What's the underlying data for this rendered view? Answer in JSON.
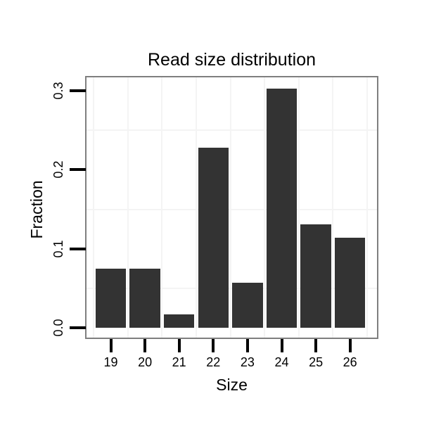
{
  "chart_data": {
    "type": "bar",
    "title": "Read size distribution",
    "xlabel": "Size",
    "ylabel": "Fraction",
    "categories": [
      "19",
      "20",
      "21",
      "22",
      "23",
      "24",
      "25",
      "26"
    ],
    "values": [
      0.075,
      0.075,
      0.017,
      0.228,
      0.057,
      0.303,
      0.131,
      0.114
    ],
    "y_tick_labels": [
      "0.0",
      "0.1",
      "0.2",
      "0.3"
    ],
    "y_tick_values": [
      0.0,
      0.1,
      0.2,
      0.3
    ],
    "y_minor_gridlines": [
      0.05,
      0.15,
      0.25
    ],
    "ylim": [
      -0.015,
      0.318
    ],
    "legend": "none",
    "grid": "minor-only",
    "colors": {
      "bar_fill": "#333333",
      "panel_border": "#7f7f7f",
      "panel_background": "#ffffff",
      "gridline": "#f4f4f4",
      "tick": "#000000",
      "text": "#000000",
      "page_background": "#ffffff"
    }
  }
}
